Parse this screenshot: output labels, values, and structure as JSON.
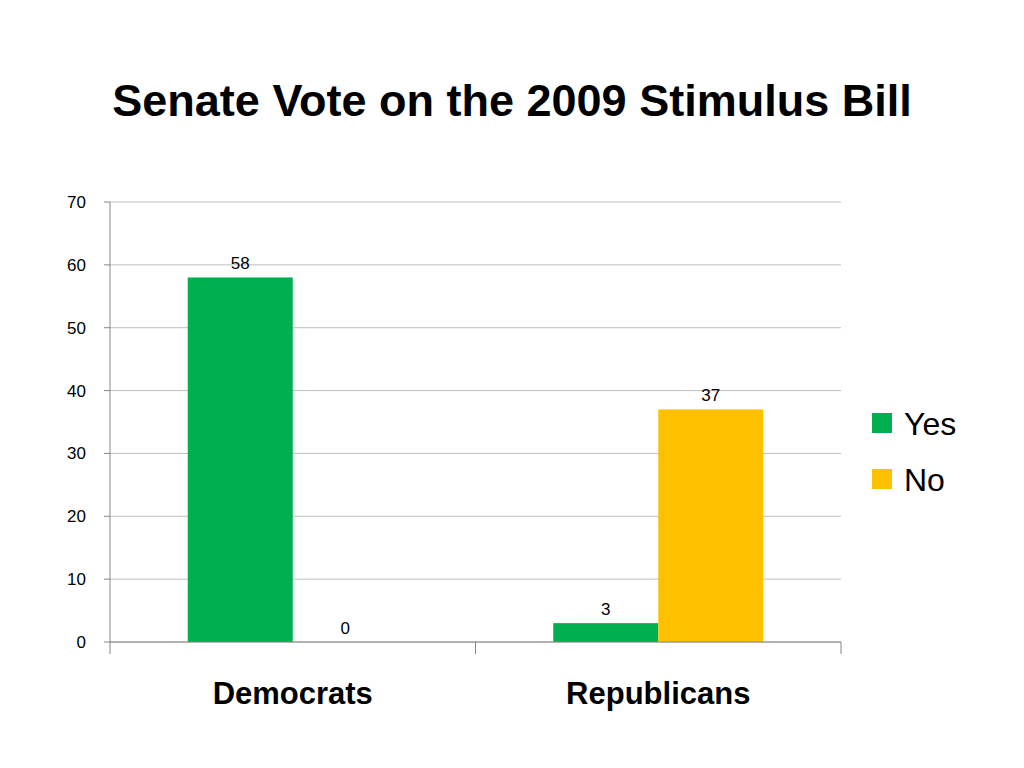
{
  "chart_data": {
    "type": "bar",
    "title": "Senate Vote on the 2009 Stimulus Bill",
    "categories": [
      "Democrats",
      "Republicans"
    ],
    "series": [
      {
        "name": "Yes",
        "color": "#00b050",
        "values": [
          58,
          3
        ]
      },
      {
        "name": "No",
        "color": "#ffc000",
        "values": [
          0,
          37
        ]
      }
    ],
    "ylim": [
      0,
      70
    ],
    "yticks": [
      0,
      10,
      20,
      30,
      40,
      50,
      60,
      70
    ],
    "grid": true,
    "legend": "right",
    "data_labels": true
  }
}
